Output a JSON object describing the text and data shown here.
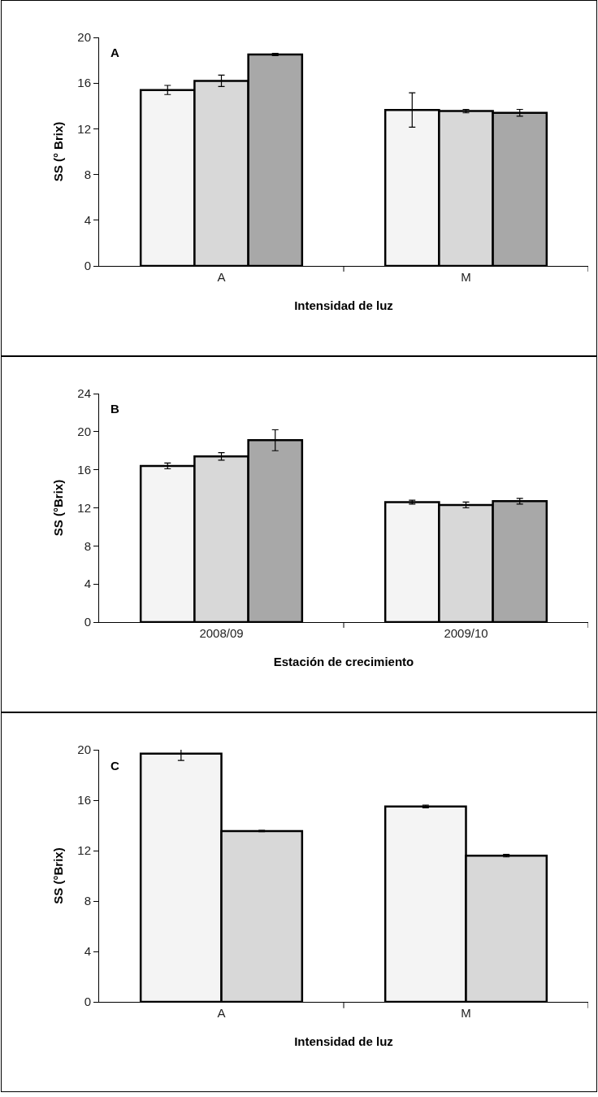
{
  "chart_data": [
    {
      "type": "bar",
      "xlabel": "Intensidad de luz",
      "ylabel": "SS (° Brix)",
      "annotations": [
        "A"
      ],
      "categories": [
        "A",
        "M"
      ],
      "ylim": [
        0,
        20
      ],
      "yticks": [
        0,
        4,
        8,
        12,
        16,
        20
      ],
      "grid": false,
      "series": [
        {
          "color": "#f4f4f4",
          "values": [
            15.4,
            13.65
          ],
          "errors": [
            0.4,
            1.5
          ]
        },
        {
          "color": "#d8d8d8",
          "values": [
            16.2,
            13.55
          ],
          "errors": [
            0.5,
            0.15
          ]
        },
        {
          "color": "#a8a8a8",
          "values": [
            18.5,
            13.4
          ],
          "errors": [
            0.1,
            0.3
          ]
        }
      ]
    },
    {
      "type": "bar",
      "xlabel": "Estación de crecimiento",
      "ylabel": "SS (°Brix)",
      "annotations": [
        "B"
      ],
      "categories": [
        "2008/09",
        "2009/10"
      ],
      "ylim": [
        0,
        24
      ],
      "yticks": [
        0,
        4,
        8,
        12,
        16,
        20,
        24
      ],
      "grid": false,
      "series": [
        {
          "color": "#f4f4f4",
          "values": [
            16.4,
            12.6
          ],
          "errors": [
            0.3,
            0.2
          ]
        },
        {
          "color": "#d8d8d8",
          "values": [
            17.4,
            12.3
          ],
          "errors": [
            0.4,
            0.3
          ]
        },
        {
          "color": "#a8a8a8",
          "values": [
            19.1,
            12.7
          ],
          "errors": [
            1.1,
            0.3
          ]
        }
      ]
    },
    {
      "type": "bar",
      "xlabel": "Intensidad de luz",
      "ylabel": "SS (°Brix)",
      "annotations": [
        "C"
      ],
      "categories": [
        "A",
        "M"
      ],
      "ylim": [
        0,
        20
      ],
      "yticks": [
        0,
        4,
        8,
        12,
        16,
        20
      ],
      "grid": false,
      "series": [
        {
          "color": "#f4f4f4",
          "values": [
            19.7,
            15.5
          ],
          "errors": [
            0.55,
            0.1
          ]
        },
        {
          "color": "#d8d8d8",
          "values": [
            13.55,
            11.6
          ],
          "errors": [
            0.05,
            0.1
          ]
        }
      ]
    }
  ]
}
